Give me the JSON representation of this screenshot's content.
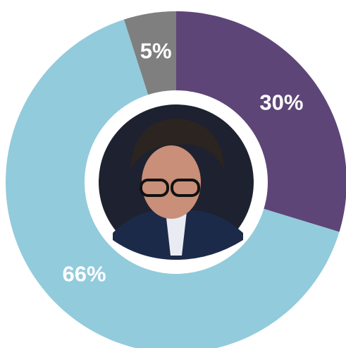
{
  "chart_data": {
    "type": "donut",
    "series": [
      {
        "name": null,
        "values": [
          30,
          66,
          5
        ],
        "value_labels": [
          "30%",
          "66%",
          "5%"
        ],
        "colors": [
          "#5e4577",
          "#92cbdc",
          "#7f7f7f"
        ]
      }
    ]
  }
}
